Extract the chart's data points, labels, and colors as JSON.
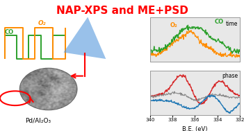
{
  "title": "NAP-XPS and ME+PSD",
  "title_color": "#ff0000",
  "title_fontsize": 11,
  "bg_color": "#ffffff",
  "plot_bg": "#e8e8e8",
  "be_min": 332,
  "be_max": 340,
  "xlabel": "B.E. (eV)",
  "label_time": "time",
  "label_phase": "phase",
  "label_O2": "O₂",
  "label_CO": "CO",
  "label_sample": "Pd/Al₂O₃",
  "orange_color": "#ff8c00",
  "green_color": "#2ca02c",
  "red_color": "#d62728",
  "blue_color": "#1f77b4",
  "gray_color": "#888888",
  "wedge_color": "#5599dd",
  "wedge_alpha": 0.6
}
